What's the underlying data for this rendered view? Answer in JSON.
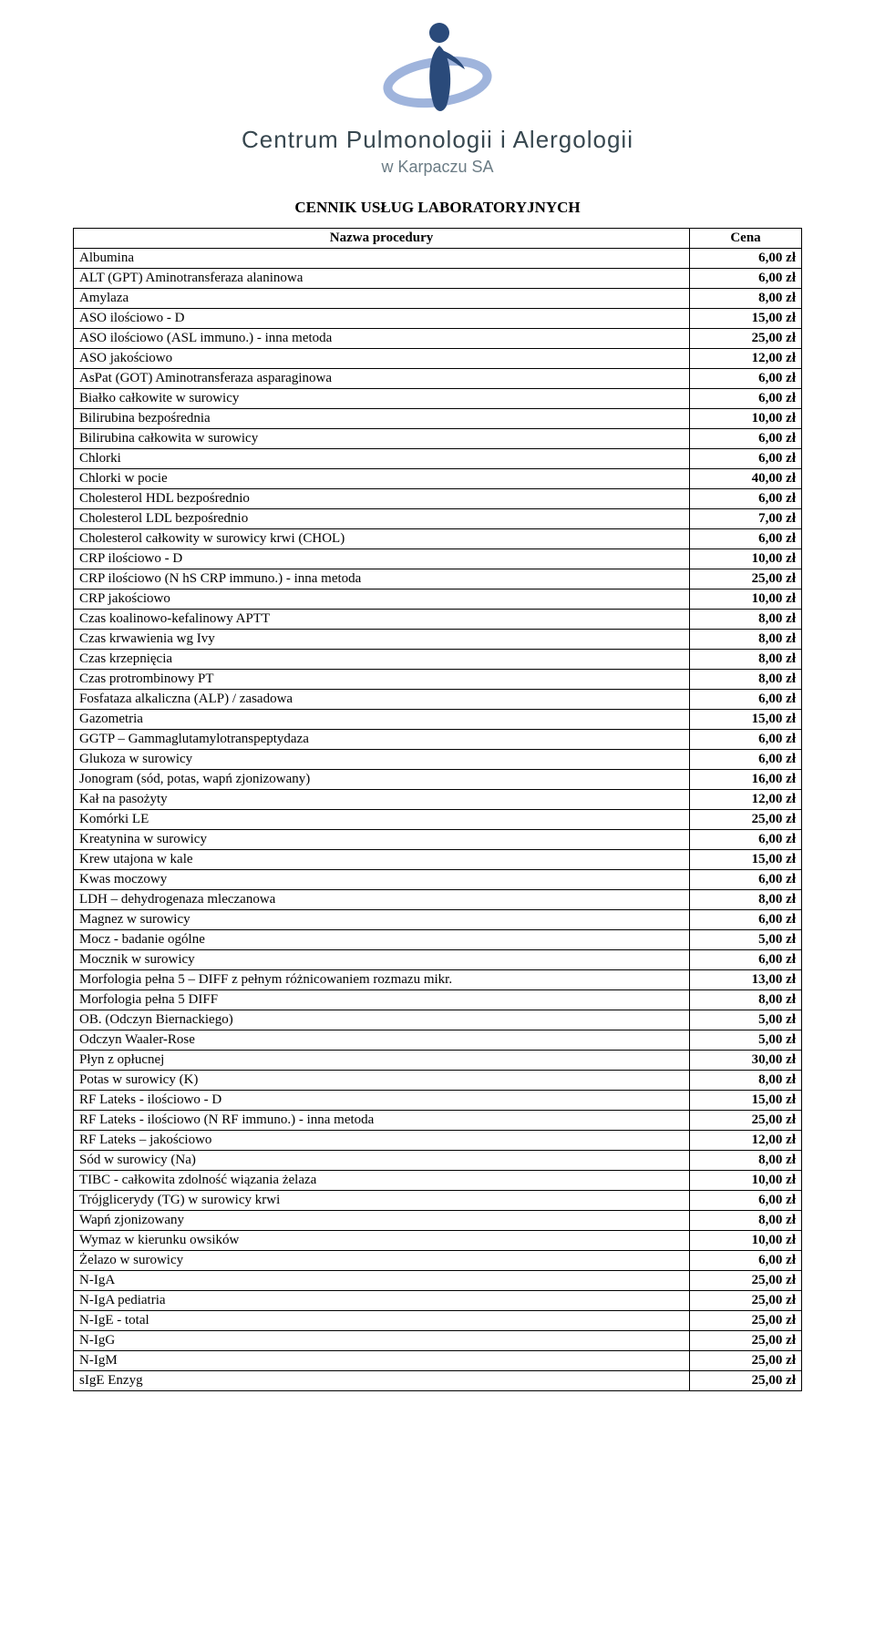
{
  "org": {
    "name": "Centrum Pulmonologii i Alergologii",
    "sub": "w Karpaczu SA",
    "name_color": "#37474f",
    "sub_color": "#6b7c85",
    "logo_colors": {
      "light": "#9fb4dc",
      "dark": "#2a4a7a"
    }
  },
  "doc": {
    "title": "CENNIK USŁUG  LABORATORYJNYCH",
    "columns": {
      "name": "Nazwa procedury",
      "price": "Cena"
    },
    "text_color": "#000000",
    "border_color": "#000000",
    "font_family": "Times New Roman",
    "font_size_pt": 11,
    "header_weight": "bold",
    "price_weight": "bold",
    "price_align": "right"
  },
  "rows": [
    {
      "name": "Albumina",
      "price": "6,00 zł"
    },
    {
      "name": "ALT (GPT) Aminotransferaza alaninowa",
      "price": "6,00 zł"
    },
    {
      "name": "Amylaza",
      "price": "8,00 zł"
    },
    {
      "name": "ASO ilościowo - D",
      "price": "15,00 zł"
    },
    {
      "name": "ASO ilościowo (ASL immuno.) - inna metoda",
      "price": "25,00 zł"
    },
    {
      "name": "ASO jakościowo",
      "price": "12,00 zł"
    },
    {
      "name": "AsPat (GOT) Aminotransferaza asparaginowa",
      "price": "6,00 zł"
    },
    {
      "name": "Białko całkowite w surowicy",
      "price": "6,00 zł"
    },
    {
      "name": "Bilirubina bezpośrednia",
      "price": "10,00 zł"
    },
    {
      "name": "Bilirubina całkowita w surowicy",
      "price": "6,00 zł"
    },
    {
      "name": "Chlorki",
      "price": "6,00 zł"
    },
    {
      "name": "Chlorki w pocie",
      "price": "40,00 zł"
    },
    {
      "name": "Cholesterol  HDL bezpośrednio",
      "price": "6,00 zł"
    },
    {
      "name": "Cholesterol  LDL bezpośrednio",
      "price": "7,00 zł"
    },
    {
      "name": "Cholesterol całkowity w surowicy krwi (CHOL)",
      "price": "6,00 zł"
    },
    {
      "name": "CRP ilościowo - D",
      "price": "10,00 zł"
    },
    {
      "name": "CRP ilościowo (N hS CRP immuno.) - inna metoda",
      "price": "25,00 zł"
    },
    {
      "name": "CRP jakościowo",
      "price": "10,00 zł"
    },
    {
      "name": "Czas koalinowo-kefalinowy APTT",
      "price": "8,00 zł"
    },
    {
      "name": "Czas krwawienia wg Ivy",
      "price": "8,00 zł"
    },
    {
      "name": "Czas krzepnięcia",
      "price": "8,00 zł"
    },
    {
      "name": "Czas protrombinowy PT",
      "price": "8,00 zł"
    },
    {
      "name": "Fosfataza alkaliczna (ALP)  / zasadowa",
      "price": "6,00 zł"
    },
    {
      "name": "Gazometria",
      "price": "15,00 zł"
    },
    {
      "name": "GGTP – Gammaglutamylotranspeptydaza",
      "price": "6,00 zł"
    },
    {
      "name": "Glukoza w surowicy",
      "price": "6,00 zł"
    },
    {
      "name": "Jonogram (sód, potas, wapń zjonizowany)",
      "price": "16,00 zł"
    },
    {
      "name": "Kał na pasożyty",
      "price": "12,00 zł"
    },
    {
      "name": "Komórki LE",
      "price": "25,00 zł"
    },
    {
      "name": "Kreatynina w surowicy",
      "price": "6,00 zł"
    },
    {
      "name": "Krew utajona w kale",
      "price": "15,00 zł"
    },
    {
      "name": "Kwas moczowy",
      "price": "6,00 zł"
    },
    {
      "name": "LDH – dehydrogenaza mleczanowa",
      "price": "8,00 zł"
    },
    {
      "name": "Magnez w surowicy",
      "price": "6,00 zł"
    },
    {
      "name": "Mocz - badanie ogólne",
      "price": "5,00 zł"
    },
    {
      "name": "Mocznik w surowicy",
      "price": "6,00 zł"
    },
    {
      "name": "Morfologia pełna 5 – DIFF z pełnym różnicowaniem rozmazu mikr.",
      "price": "13,00 zł"
    },
    {
      "name": "Morfologia pełna 5 DIFF",
      "price": "8,00 zł"
    },
    {
      "name": "OB. (Odczyn Biernackiego)",
      "price": "5,00 zł"
    },
    {
      "name": "Odczyn Waaler-Rose",
      "price": "5,00 zł"
    },
    {
      "name": "Płyn z opłucnej",
      "price": "30,00 zł"
    },
    {
      "name": "Potas w surowicy (K)",
      "price": "8,00 zł"
    },
    {
      "name": "RF Lateks - ilościowo - D",
      "price": "15,00 zł"
    },
    {
      "name": "RF Lateks - ilościowo (N RF immuno.) - inna metoda",
      "price": "25,00 zł"
    },
    {
      "name": "RF Lateks – jakościowo",
      "price": "12,00 zł"
    },
    {
      "name": "Sód w surowicy (Na)",
      "price": "8,00 zł"
    },
    {
      "name": "TIBC - całkowita zdolność wiązania żelaza",
      "price": "10,00 zł"
    },
    {
      "name": "Trójglicerydy (TG) w surowicy krwi",
      "price": "6,00 zł"
    },
    {
      "name": "Wapń zjonizowany",
      "price": "8,00 zł"
    },
    {
      "name": "Wymaz w kierunku owsików",
      "price": "10,00 zł"
    },
    {
      "name": "Żelazo w surowicy",
      "price": "6,00 zł"
    },
    {
      "name": "N-IgA",
      "price": "25,00 zł"
    },
    {
      "name": "N-IgA pediatria",
      "price": "25,00 zł"
    },
    {
      "name": "N-IgE - total",
      "price": "25,00 zł"
    },
    {
      "name": "N-IgG",
      "price": "25,00 zł"
    },
    {
      "name": "N-IgM",
      "price": "25,00 zł"
    },
    {
      "name": "sIgE Enzyg",
      "price": "25,00 zł"
    }
  ]
}
